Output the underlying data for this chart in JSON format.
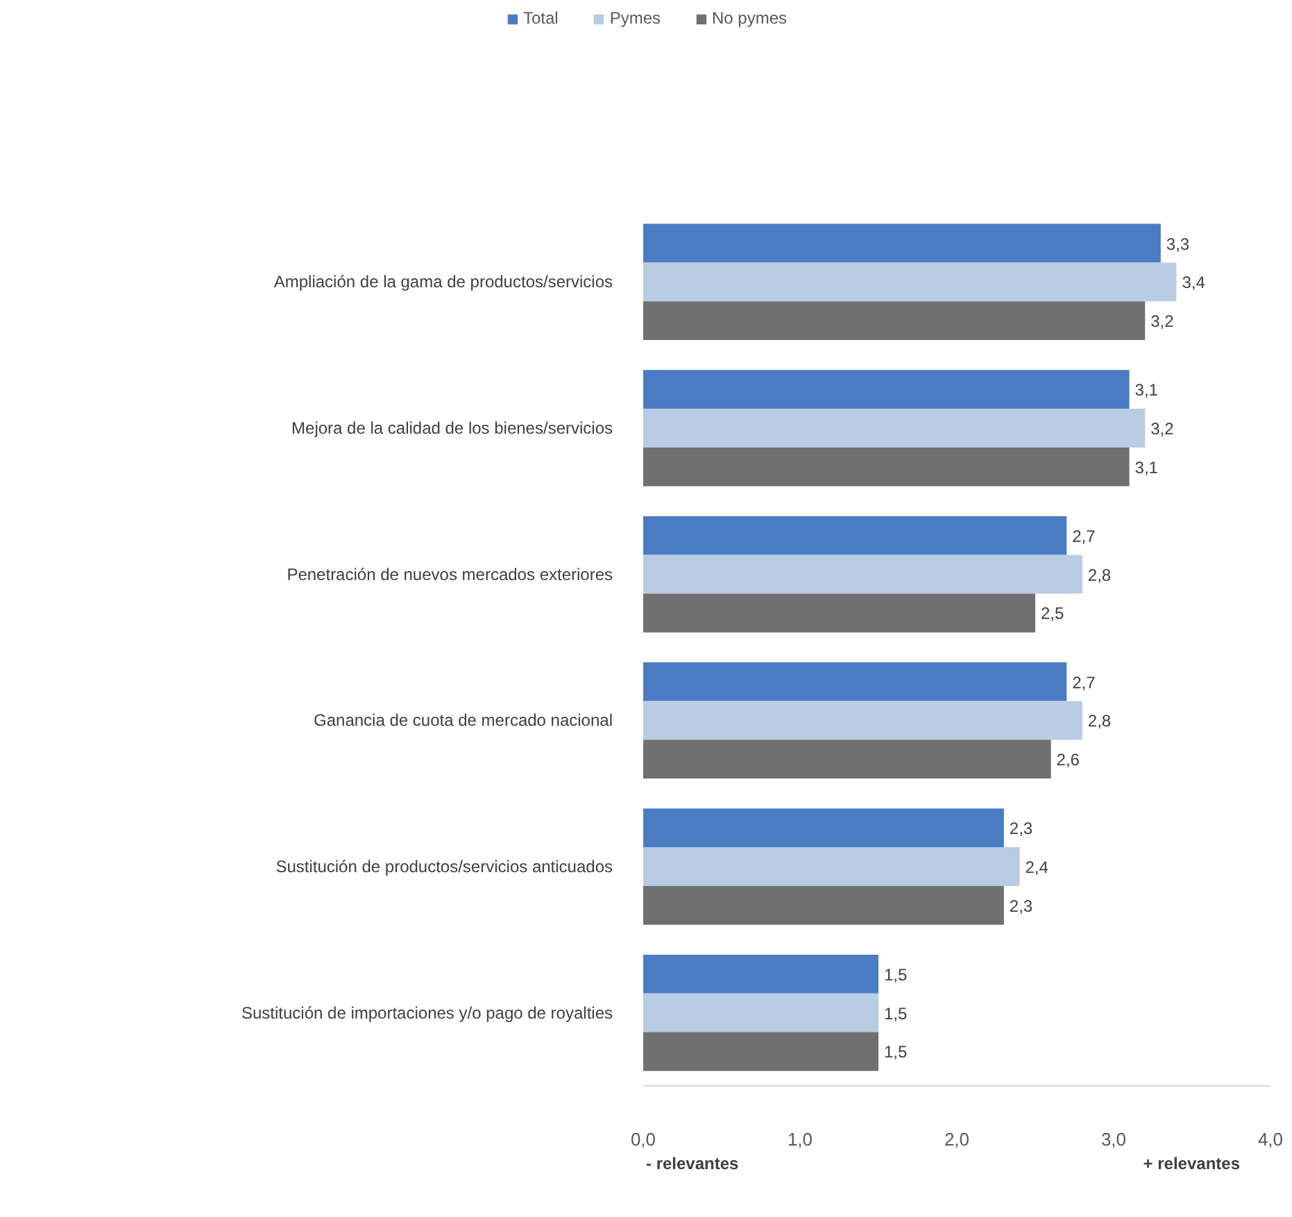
{
  "chart_data": {
    "type": "bar",
    "orientation": "horizontal",
    "categories": [
      "Ampliación de la gama de productos/servicios",
      "Mejora de la calidad de los bienes/servicios",
      "Penetración de nuevos mercados exteriores",
      "Ganancia de cuota de mercado nacional",
      "Sustitución de productos/servicios anticuados",
      "Sustitución de importaciones y/o pago de royalties"
    ],
    "series": [
      {
        "name": "Total",
        "color": "#4a7cc4",
        "values": [
          3.3,
          3.1,
          2.7,
          2.7,
          2.3,
          1.5
        ],
        "value_labels": [
          "3,3",
          "3,1",
          "2,7",
          "2,7",
          "2,3",
          "1,5"
        ]
      },
      {
        "name": "Pymes",
        "color": "#b8cce4",
        "values": [
          3.4,
          3.2,
          2.8,
          2.8,
          2.4,
          1.5
        ],
        "value_labels": [
          "3,4",
          "3,2",
          "2,8",
          "2,8",
          "2,4",
          "1,5"
        ]
      },
      {
        "name": "No pymes",
        "color": "#707070",
        "values": [
          3.2,
          3.1,
          2.5,
          2.6,
          2.3,
          1.5
        ],
        "value_labels": [
          "3,2",
          "3,1",
          "2,5",
          "2,6",
          "2,3",
          "1,5"
        ]
      }
    ],
    "xlim": [
      0,
      4
    ],
    "xticks": [
      {
        "value": 0,
        "label": "0,0"
      },
      {
        "value": 1,
        "label": "1,0"
      },
      {
        "value": 2,
        "label": "2,0"
      },
      {
        "value": 3,
        "label": "3,0"
      },
      {
        "value": 4,
        "label": "4,0"
      }
    ],
    "legend": "top",
    "annotations": [
      "- relevantes",
      "+ relevantes"
    ]
  }
}
